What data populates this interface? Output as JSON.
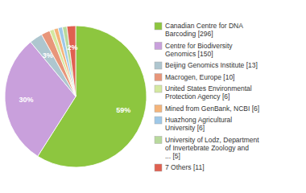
{
  "chart_data": {
    "type": "pie",
    "categories": [
      "Canadian Centre for DNA\nBarcoding [296]",
      "Centre for Biodiversity\nGenomics [150]",
      "Beijing Genomics Institute [13]",
      "Macrogen, Europe [10]",
      "United States Environmental\nProtection Agency [6]",
      "Mined from GenBank, NCBI [6]",
      "Huazhong Agricultural\nUniversity [6]",
      "University of Lodz, Department\nof Invertebrate Zoology and\n... [5]",
      "7 Others [11]"
    ],
    "values": [
      59,
      30,
      3,
      2,
      1,
      1,
      1,
      1,
      2
    ],
    "value_labels": [
      "59%",
      "30%",
      "3%",
      null,
      null,
      null,
      null,
      null,
      "2%"
    ],
    "colors": [
      "#8dc63f",
      "#c9a0dc",
      "#aec6cf",
      "#e8967a",
      "#d4e8a0",
      "#f4b47a",
      "#9ec8e8",
      "#b8d99c",
      "#e06050"
    ],
    "data_labels": true,
    "legend": "right"
  }
}
